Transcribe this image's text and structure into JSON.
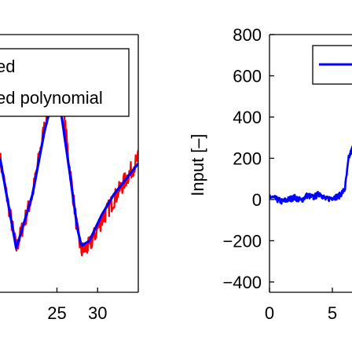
{
  "chart_data": [
    {
      "type": "line",
      "title": "",
      "xlabel": "",
      "ylabel": "",
      "xlim": [
        18,
        35
      ],
      "xticks": [
        25,
        30
      ],
      "xtick_labels": [
        "25",
        "30"
      ],
      "grid": false,
      "legend": {
        "placement": "top-right",
        "entries": [
          {
            "label": "ed",
            "color": "#ff0000"
          },
          {
            "label": "ed polynomial",
            "color": "#0000ff"
          }
        ]
      },
      "series": [
        {
          "name": "ed",
          "color": "#ff0000",
          "noisy": true,
          "points": [
            [
              18.0,
              0.52
            ],
            [
              20.0,
              0.17
            ],
            [
              22.0,
              0.38
            ],
            [
              23.5,
              0.65
            ],
            [
              24.5,
              0.84
            ],
            [
              25.0,
              0.92
            ],
            [
              25.5,
              0.8
            ],
            [
              26.5,
              0.5
            ],
            [
              27.5,
              0.24
            ],
            [
              28.0,
              0.16
            ],
            [
              29.0,
              0.18
            ],
            [
              30.5,
              0.28
            ],
            [
              32.0,
              0.36
            ],
            [
              33.5,
              0.44
            ],
            [
              35.0,
              0.52
            ]
          ]
        },
        {
          "name": "ed polynomial",
          "color": "#0000ff",
          "noisy": false,
          "points": [
            [
              18.0,
              0.52
            ],
            [
              20.0,
              0.17
            ],
            [
              22.0,
              0.38
            ],
            [
              23.5,
              0.63
            ],
            [
              24.5,
              0.75
            ],
            [
              25.0,
              0.75
            ],
            [
              25.5,
              0.7
            ],
            [
              26.5,
              0.48
            ],
            [
              27.5,
              0.25
            ],
            [
              28.0,
              0.18
            ],
            [
              29.0,
              0.2
            ],
            [
              30.5,
              0.3
            ],
            [
              32.0,
              0.38
            ],
            [
              33.5,
              0.44
            ],
            [
              35.0,
              0.5
            ]
          ]
        }
      ]
    },
    {
      "type": "line",
      "title": "",
      "xlabel": "",
      "ylabel": "Input [–]",
      "xlim": [
        0,
        7
      ],
      "ylim": [
        -450,
        800
      ],
      "xticks": [
        0,
        5
      ],
      "xtick_labels": [
        "0",
        "5"
      ],
      "yticks": [
        800,
        600,
        400,
        200,
        0,
        -200,
        -400
      ],
      "ytick_labels": [
        "800",
        "600",
        "400",
        "200",
        "0",
        "−200",
        "−400"
      ],
      "grid": false,
      "legend": {
        "placement": "top-right",
        "entries": [
          {
            "label": "",
            "color": "#0000ff"
          }
        ]
      },
      "series": [
        {
          "name": "",
          "color": "#0000ff",
          "noisy": true,
          "points": [
            [
              0.0,
              15
            ],
            [
              1.0,
              -10
            ],
            [
              2.0,
              10
            ],
            [
              2.5,
              -5
            ],
            [
              3.0,
              20
            ],
            [
              3.5,
              10
            ],
            [
              4.0,
              30
            ],
            [
              4.5,
              0
            ],
            [
              5.0,
              10
            ],
            [
              5.5,
              15
            ],
            [
              6.0,
              50
            ],
            [
              6.3,
              200
            ],
            [
              6.6,
              250
            ],
            [
              7.0,
              180
            ]
          ]
        }
      ]
    }
  ]
}
